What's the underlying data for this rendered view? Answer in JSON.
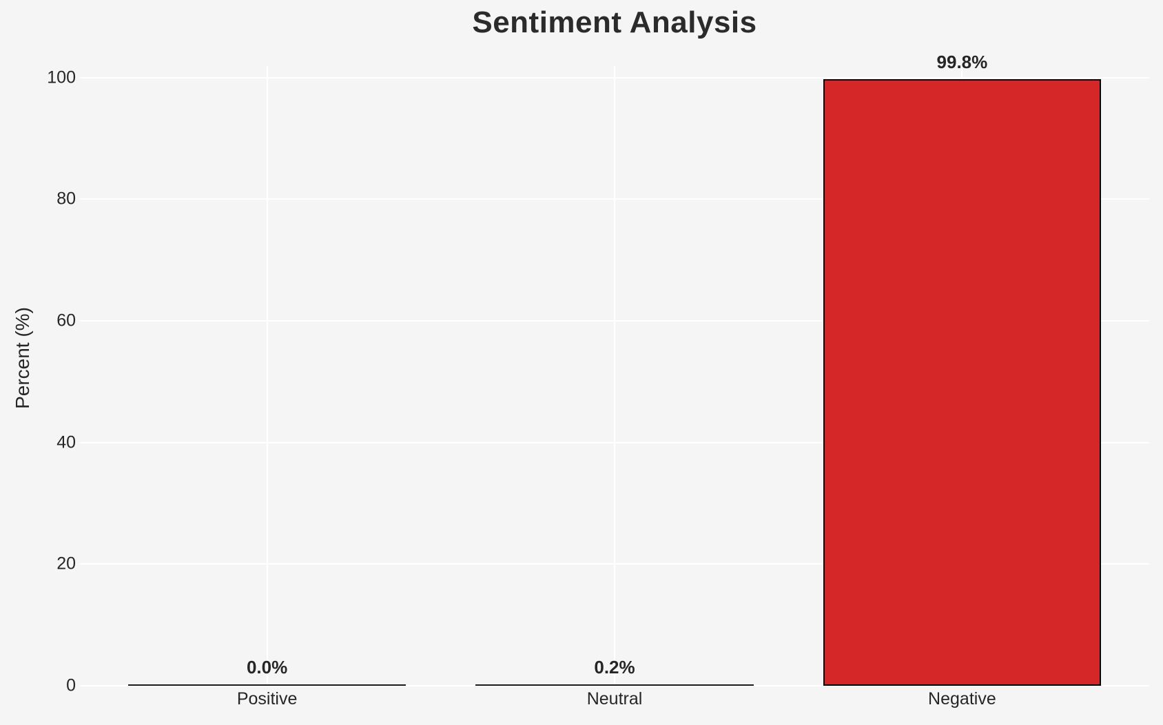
{
  "chart_data": {
    "type": "bar",
    "title": "Sentiment Analysis",
    "xlabel": "",
    "ylabel": "Percent (%)",
    "categories": [
      "Positive",
      "Neutral",
      "Negative"
    ],
    "values": [
      0.0,
      0.2,
      99.8
    ],
    "bar_labels": [
      "0.0%",
      "0.2%",
      "99.8%"
    ],
    "yticks": [
      0,
      20,
      40,
      60,
      80,
      100
    ],
    "ylim": [
      0,
      101.9
    ],
    "grid": "white horizontal gridlines at y ticks and vertical gridlines at bar centers, on light gray background",
    "legend_position": "none",
    "colors": {
      "bar_fill": "#d62728",
      "bar_edge": "#000000",
      "flat_bar_line": "#1a1a1a",
      "background": "#f5f5f6",
      "gridline": "#ffffff",
      "text": "#262626",
      "title_text": "#2b2b2b"
    }
  }
}
